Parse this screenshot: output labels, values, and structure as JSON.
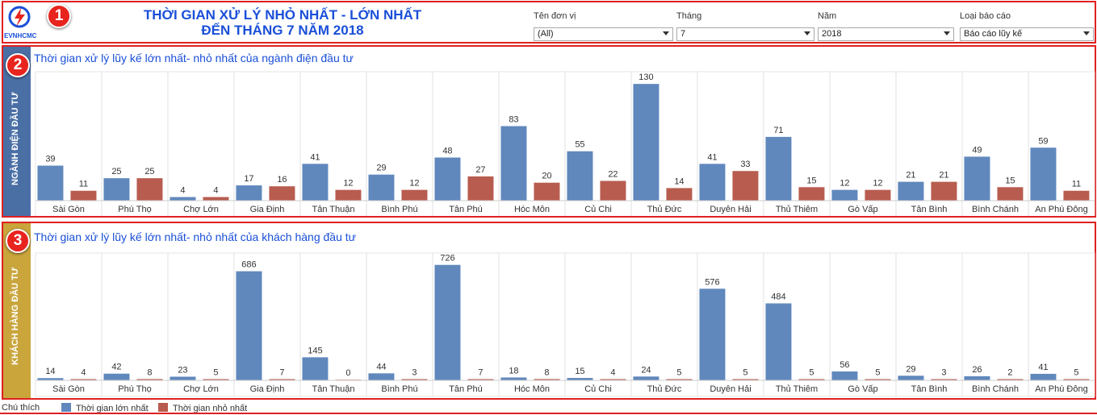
{
  "header": {
    "title_line1": "THỜI GIAN XỬ LÝ NHỎ NHẤT - LỚN NHẤT",
    "title_line2": "ĐẾN THÁNG 7 NĂM 2018",
    "logo_text": "EVNHCMC",
    "badge": "1"
  },
  "filters": [
    {
      "label": "Tên đơn vị",
      "value": "(All)"
    },
    {
      "label": "Tháng",
      "value": "7"
    },
    {
      "label": "Năm",
      "value": "2018"
    },
    {
      "label": "Loại báo cáo",
      "value": "Báo cáo lũy kế"
    }
  ],
  "sections": [
    {
      "badge": "2",
      "side_label": "NGÀNH ĐIỆN ĐẦU TƯ",
      "side_color": "#4a6fa5",
      "title": "Thời gian xử lý lũy kế lớn nhất- nhỏ nhất của ngành điện đầu tư"
    },
    {
      "badge": "3",
      "side_label": "KHÁCH HÀNG ĐẦU TƯ",
      "side_color": "#c9a53c",
      "title": "Thời gian xử lý lũy kế lớn nhất- nhỏ nhất của khách hàng đầu tư"
    }
  ],
  "legend": {
    "title": "Chú thích",
    "items": [
      {
        "label": "Thời gian lớn nhất",
        "color": "#6088bd"
      },
      {
        "label": "Thời gian nhỏ nhất",
        "color": "#b85c4f"
      }
    ]
  },
  "chart_data": [
    {
      "type": "bar",
      "title": "Thời gian xử lý lũy kế lớn nhất- nhỏ nhất của ngành điện đầu tư",
      "categories": [
        "Sài Gòn",
        "Phú Thọ",
        "Chợ Lớn",
        "Gia Định",
        "Tân Thuận",
        "Bình Phú",
        "Tân Phú",
        "Hóc Môn",
        "Củ Chi",
        "Thủ Đức",
        "Duyên Hải",
        "Thủ Thiêm",
        "Gò Vấp",
        "Tân Bình",
        "Bình Chánh",
        "An Phú Đông"
      ],
      "series": [
        {
          "name": "Thời gian lớn nhất",
          "color": "#6088bd",
          "values": [
            39,
            25,
            4,
            17,
            41,
            29,
            48,
            83,
            55,
            130,
            41,
            71,
            12,
            21,
            49,
            59
          ]
        },
        {
          "name": "Thời gian nhỏ nhất",
          "color": "#b85c4f",
          "values": [
            11,
            25,
            4,
            16,
            12,
            12,
            27,
            20,
            22,
            14,
            33,
            15,
            12,
            21,
            15,
            11
          ]
        }
      ],
      "ylim": [
        0,
        140
      ],
      "grid": false
    },
    {
      "type": "bar",
      "title": "Thời gian xử lý lũy kế lớn nhất- nhỏ nhất của khách hàng đầu tư",
      "categories": [
        "Sài Gòn",
        "Phú Thọ",
        "Chợ Lớn",
        "Gia Định",
        "Tân Thuận",
        "Bình Phú",
        "Tân Phú",
        "Hóc Môn",
        "Củ Chi",
        "Thủ Đức",
        "Duyên Hải",
        "Thủ Thiêm",
        "Gò Vấp",
        "Tân Bình",
        "Bình Chánh",
        "An Phú Đông"
      ],
      "series": [
        {
          "name": "Thời gian lớn nhất",
          "color": "#6088bd",
          "values": [
            14,
            42,
            23,
            686,
            145,
            44,
            726,
            18,
            15,
            24,
            576,
            484,
            56,
            29,
            26,
            41
          ]
        },
        {
          "name": "Thời gian nhỏ nhất",
          "color": "#b85c4f",
          "values": [
            4,
            8,
            5,
            7,
            0,
            3,
            7,
            8,
            4,
            5,
            5,
            5,
            5,
            3,
            2,
            5
          ]
        }
      ],
      "ylim": [
        0,
        760
      ],
      "grid": false
    }
  ]
}
